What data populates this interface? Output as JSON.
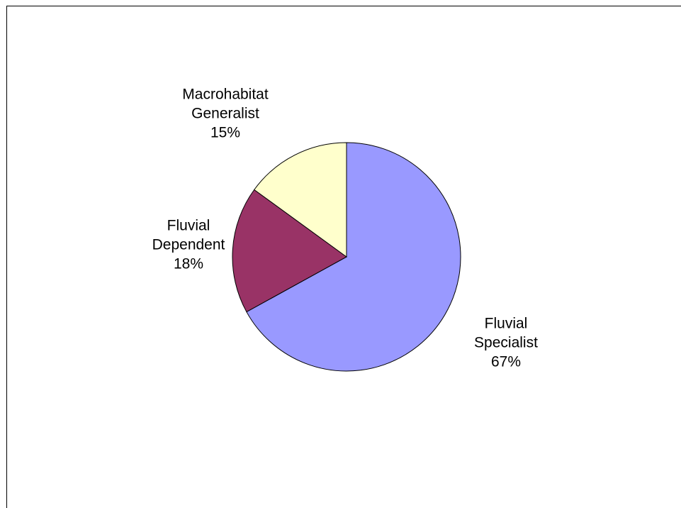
{
  "chart_data": {
    "type": "pie",
    "categories": [
      "Fluvial Specialist",
      "Fluvial Dependent",
      "Macrohabitat Generalist"
    ],
    "values": [
      67,
      18,
      15
    ],
    "value_labels": [
      "67%",
      "18%",
      "15%"
    ],
    "colors": [
      "#9999ff",
      "#993366",
      "#ffffcc"
    ]
  }
}
